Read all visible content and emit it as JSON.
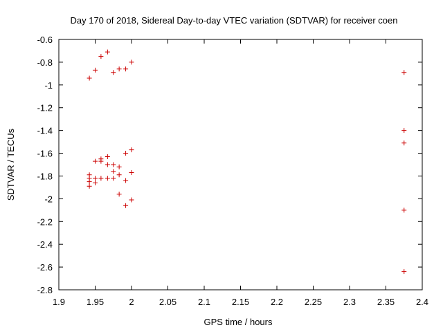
{
  "chart_data": {
    "type": "scatter",
    "title": "Day 170 of 2018, Sidereal Day-to-day VTEC variation (SDTVAR) for receiver coen",
    "xlabel": "GPS time / hours",
    "ylabel": "SDTVAR / TECUs",
    "xlim": [
      1.9,
      2.4
    ],
    "ylim": [
      -2.8,
      -0.6
    ],
    "x_ticks": [
      1.9,
      1.95,
      2,
      2.05,
      2.1,
      2.15,
      2.2,
      2.25,
      2.3,
      2.35,
      2.4
    ],
    "x_tick_labels": [
      "1.9",
      "1.95",
      "2",
      "2.05",
      "2.1",
      "2.15",
      "2.2",
      "2.25",
      "2.3",
      "2.35",
      "2.4"
    ],
    "y_ticks": [
      -0.6,
      -0.8,
      -1,
      -1.2,
      -1.4,
      -1.6,
      -1.8,
      -2,
      -2.2,
      -2.4,
      -2.6,
      -2.8
    ],
    "y_tick_labels": [
      "-0.6",
      "-0.8",
      "-1",
      "-1.2",
      "-1.4",
      "-1.6",
      "-1.8",
      "-2",
      "-2.2",
      "-2.4",
      "-2.6",
      "-2.8"
    ],
    "grid": false,
    "marker": "+",
    "marker_color": "#cc0000",
    "series": [
      {
        "name": "SDTVAR",
        "points": [
          [
            1.942,
            -0.94
          ],
          [
            1.942,
            -1.79
          ],
          [
            1.942,
            -1.82
          ],
          [
            1.942,
            -1.85
          ],
          [
            1.942,
            -1.89
          ],
          [
            1.95,
            -0.87
          ],
          [
            1.95,
            -1.67
          ],
          [
            1.95,
            -1.82
          ],
          [
            1.95,
            -1.86
          ],
          [
            1.958,
            -0.75
          ],
          [
            1.958,
            -1.65
          ],
          [
            1.958,
            -1.67
          ],
          [
            1.958,
            -1.82
          ],
          [
            1.967,
            -0.71
          ],
          [
            1.967,
            -1.63
          ],
          [
            1.967,
            -1.7
          ],
          [
            1.967,
            -1.82
          ],
          [
            1.975,
            -0.89
          ],
          [
            1.975,
            -1.7
          ],
          [
            1.975,
            -1.76
          ],
          [
            1.975,
            -1.82
          ],
          [
            1.983,
            -0.86
          ],
          [
            1.983,
            -1.72
          ],
          [
            1.983,
            -1.79
          ],
          [
            1.983,
            -1.96
          ],
          [
            1.992,
            -0.86
          ],
          [
            1.992,
            -1.6
          ],
          [
            1.992,
            -1.84
          ],
          [
            1.992,
            -2.06
          ],
          [
            2.0,
            -0.8
          ],
          [
            2.0,
            -1.57
          ],
          [
            2.0,
            -1.77
          ],
          [
            2.0,
            -2.01
          ],
          [
            2.375,
            -0.89
          ],
          [
            2.375,
            -1.4
          ],
          [
            2.375,
            -1.51
          ],
          [
            2.375,
            -2.1
          ],
          [
            2.375,
            -2.64
          ]
        ]
      }
    ]
  }
}
